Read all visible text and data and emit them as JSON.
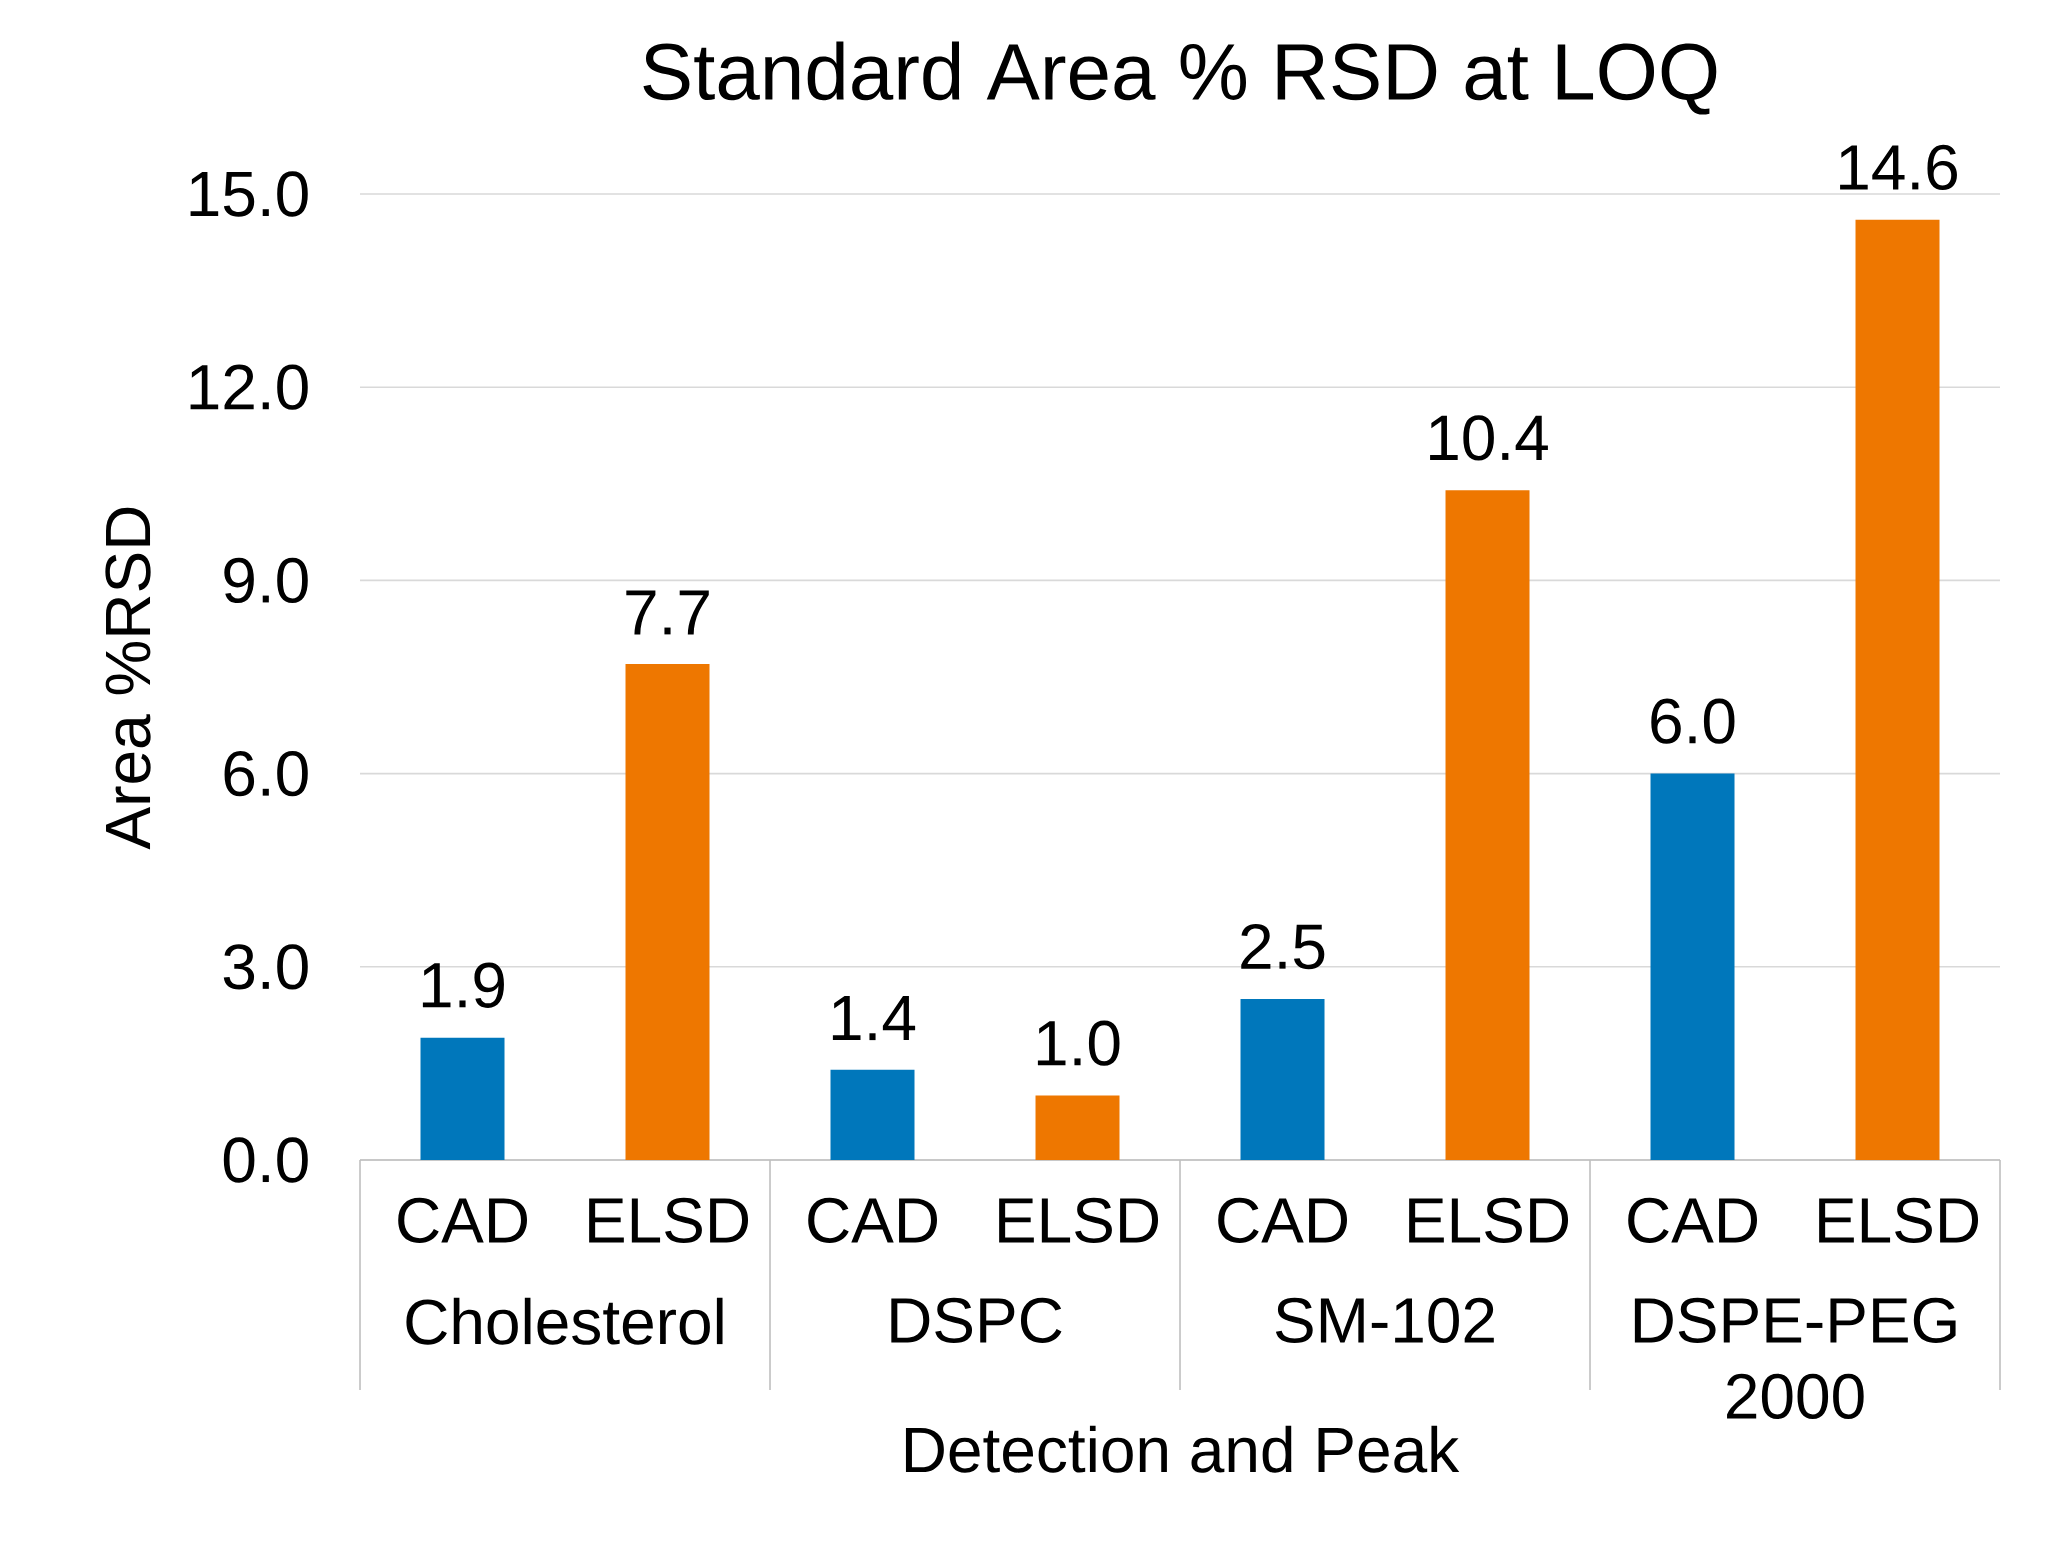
{
  "chart_data": {
    "type": "bar",
    "title": "Standard Area % RSD at LOQ",
    "xlabel": "Detection and Peak",
    "ylabel": "Area %RSD",
    "categories": [
      "CAD",
      "ELSD",
      "CAD",
      "ELSD",
      "CAD",
      "ELSD",
      "CAD",
      "ELSD"
    ],
    "values": [
      1.9,
      7.7,
      1.4,
      1.0,
      2.5,
      10.4,
      6.0,
      14.6
    ],
    "value_labels": [
      "1.9",
      "7.7",
      "1.4",
      "1.0",
      "2.5",
      "10.4",
      "6.0",
      "14.6"
    ],
    "colors": [
      "#0077bb",
      "#ee7700",
      "#0077bb",
      "#ee7700",
      "#0077bb",
      "#ee7700",
      "#0077bb",
      "#ee7700"
    ],
    "annotations": [
      "Cholesterol",
      "DSPC",
      "SM-102",
      "DSPE-PEG 2000"
    ],
    "ylim": [
      0,
      15
    ],
    "yticks": [
      {
        "value": 0,
        "label": "0.0"
      },
      {
        "value": 3,
        "label": "3.0"
      },
      {
        "value": 6,
        "label": "6.0"
      },
      {
        "value": 9,
        "label": "9.0"
      },
      {
        "value": 12,
        "label": "12.0"
      },
      {
        "value": 15,
        "label": "15.0"
      }
    ],
    "grid": "y"
  }
}
